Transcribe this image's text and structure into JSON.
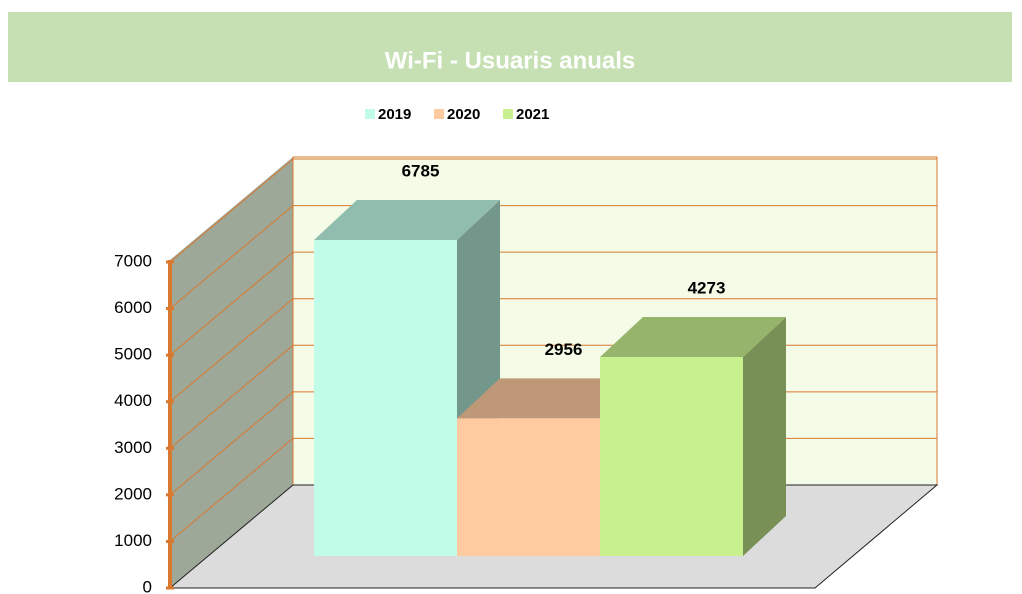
{
  "chart_data": {
    "type": "bar",
    "title": "Wi-Fi - Usuaris anuals",
    "series": [
      {
        "name": "2019",
        "color": "#c0fce8",
        "values": [
          6785
        ]
      },
      {
        "name": "2020",
        "color": "#fecba0",
        "values": [
          2956
        ]
      },
      {
        "name": "2021",
        "color": "#c8f08f",
        "values": [
          4273
        ]
      }
    ],
    "ylim": [
      0,
      7000
    ],
    "yticks": [
      0,
      1000,
      2000,
      3000,
      4000,
      5000,
      6000,
      7000
    ],
    "grid": true,
    "legend": "top"
  }
}
